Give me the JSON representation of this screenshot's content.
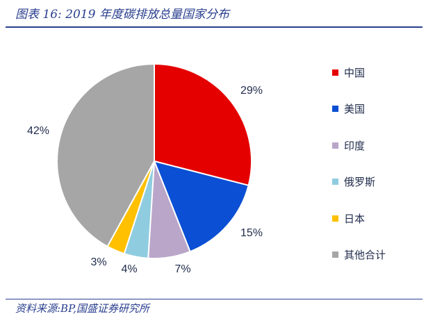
{
  "header": {
    "title": "图表 16:  2019 年度碳排放总量国家分布",
    "source": "资料来源:BP,国盛证券研究所"
  },
  "chart_data": {
    "type": "pie",
    "title": "图表 16:  2019 年度碳排放总量国家分布",
    "slices": [
      {
        "name": "中国",
        "value": 29,
        "label": "29%",
        "color": "#e50000"
      },
      {
        "name": "美国",
        "value": 15,
        "label": "15%",
        "color": "#0a4fd4"
      },
      {
        "name": "印度",
        "value": 7,
        "label": "7%",
        "color": "#b9a6c9"
      },
      {
        "name": "俄罗斯",
        "value": 4,
        "label": "4%",
        "color": "#8fcce0"
      },
      {
        "name": "日本",
        "value": 3,
        "label": "3%",
        "color": "#ffc000"
      },
      {
        "name": "其他合计",
        "value": 42,
        "label": "42%",
        "color": "#a6a6a6"
      }
    ],
    "legend_placement": "right"
  }
}
